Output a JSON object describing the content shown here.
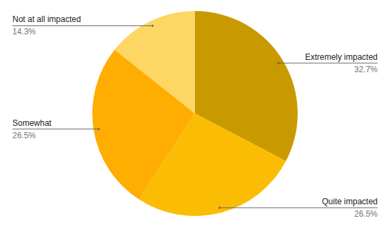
{
  "chart_data": {
    "type": "pie",
    "categories": [
      "Extremely impacted",
      "Quite impacted",
      "Somewhat",
      "Not at all impacted"
    ],
    "values": [
      32.7,
      26.5,
      26.5,
      14.3
    ],
    "value_labels": [
      "32.7%",
      "26.5%",
      "26.5%",
      "14.3%"
    ],
    "colors": [
      "#c99a00",
      "#fbbc04",
      "#ffad00",
      "#fdd663"
    ],
    "data_labels": true
  }
}
